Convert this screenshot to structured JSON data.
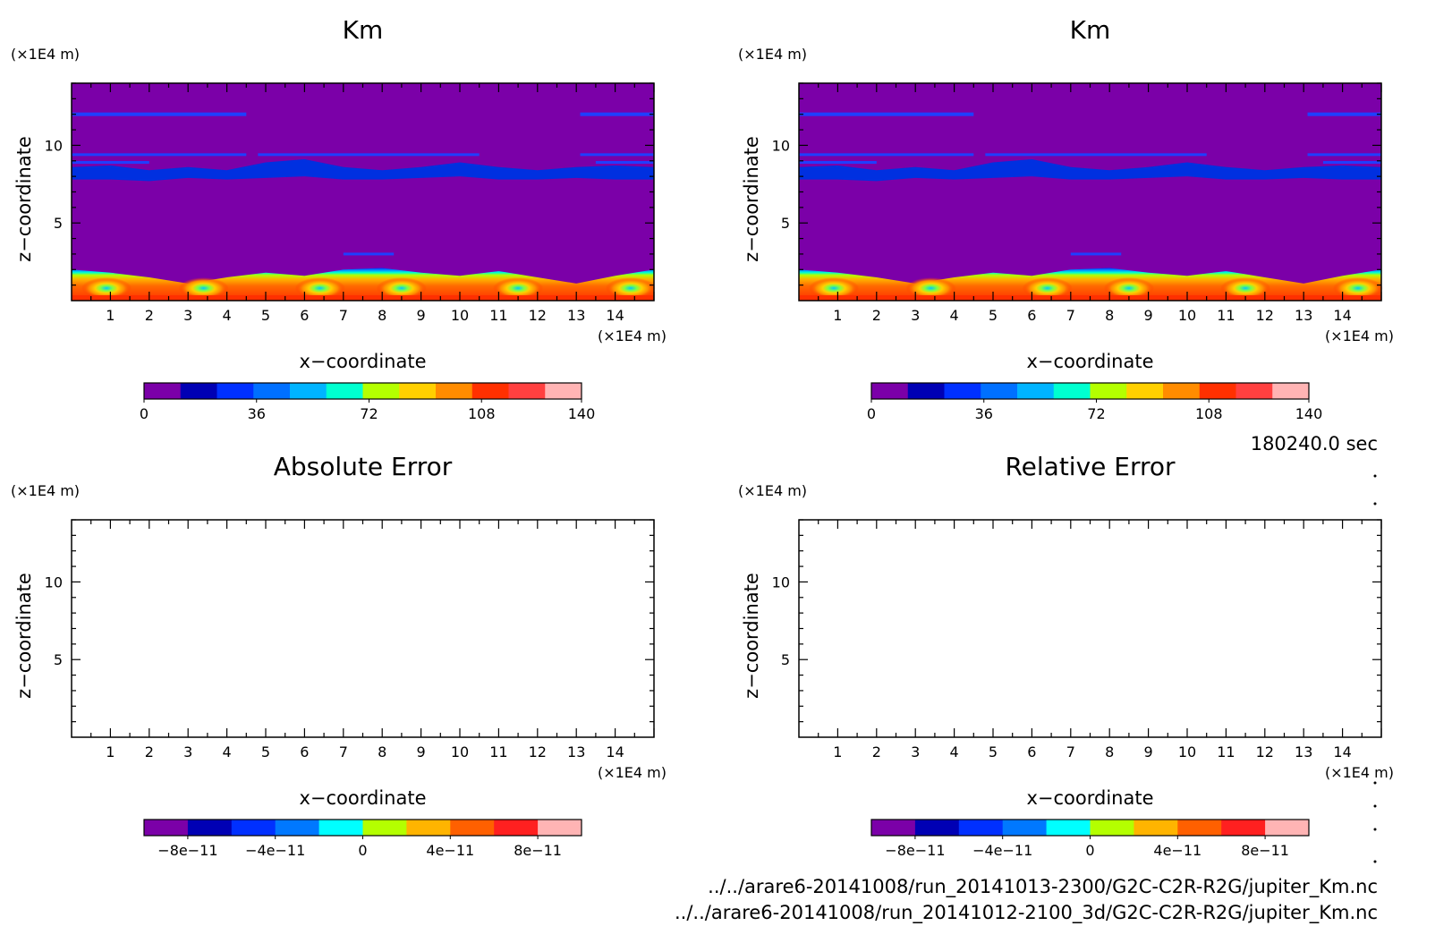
{
  "time_label": "180240.0 sec",
  "file_paths": [
    "../../arare6-20141008/run_20141013-2300/G2C-C2R-R2G/jupiter_Km.nc",
    "../../arare6-20141008/run_20141012-2100_3d/G2C-C2R-R2G/jupiter_Km.nc"
  ],
  "colors": {
    "km_colorbar": [
      "#7b00a8",
      "#0000b4",
      "#0030ff",
      "#0070ff",
      "#00b4ff",
      "#00ffd0",
      "#b4ff00",
      "#ffd000",
      "#ff8c00",
      "#ff3000",
      "#ff4040",
      "#ffb4b4"
    ],
    "err_colorbar": [
      "#7b00a8",
      "#0000b4",
      "#0030ff",
      "#0078ff",
      "#00ffff",
      "#b4ff00",
      "#ffb400",
      "#ff6000",
      "#ff2020",
      "#ffb4b4"
    ],
    "background_field": "#7b00a8",
    "contour_blue": "#1f3fff"
  },
  "chart_data": [
    {
      "id": "km-left",
      "type": "heatmap",
      "title": "Km",
      "xlabel": "x−coordinate",
      "ylabel": "z−coordinate",
      "x_unit": "(×1E4 m)",
      "y_unit": "(×1E4 m)",
      "xlim": [
        0,
        15
      ],
      "ylim": [
        0,
        14
      ],
      "x_ticks": [
        "1",
        "2",
        "3",
        "4",
        "5",
        "6",
        "7",
        "8",
        "9",
        "10",
        "11",
        "12",
        "13",
        "14"
      ],
      "y_ticks": [
        "5",
        "10"
      ],
      "filled": true,
      "colorbar": {
        "ticks": [
          "0",
          "36",
          "72",
          "108",
          "140"
        ],
        "range": [
          0,
          140
        ]
      },
      "features": {
        "upper_bands_z": [
          12.0,
          9.4,
          8.9,
          8.2,
          3.0
        ],
        "boundary_layer_top_z": 1.8
      }
    },
    {
      "id": "km-right",
      "type": "heatmap",
      "title": "Km",
      "xlabel": "x−coordinate",
      "ylabel": "z−coordinate",
      "x_unit": "(×1E4 m)",
      "y_unit": "(×1E4 m)",
      "xlim": [
        0,
        15
      ],
      "ylim": [
        0,
        14
      ],
      "x_ticks": [
        "1",
        "2",
        "3",
        "4",
        "5",
        "6",
        "7",
        "8",
        "9",
        "10",
        "11",
        "12",
        "13",
        "14"
      ],
      "y_ticks": [
        "5",
        "10"
      ],
      "filled": true,
      "colorbar": {
        "ticks": [
          "0",
          "36",
          "72",
          "108",
          "140"
        ],
        "range": [
          0,
          140
        ]
      },
      "features": {
        "upper_bands_z": [
          12.0,
          9.4,
          8.9,
          8.2,
          3.0
        ],
        "boundary_layer_top_z": 1.8
      }
    },
    {
      "id": "abs-error",
      "type": "heatmap",
      "title": "Absolute Error",
      "xlabel": "x−coordinate",
      "ylabel": "z−coordinate",
      "x_unit": "(×1E4 m)",
      "y_unit": "(×1E4 m)",
      "xlim": [
        0,
        15
      ],
      "ylim": [
        0,
        14
      ],
      "x_ticks": [
        "1",
        "2",
        "3",
        "4",
        "5",
        "6",
        "7",
        "8",
        "9",
        "10",
        "11",
        "12",
        "13",
        "14"
      ],
      "y_ticks": [
        "5",
        "10"
      ],
      "filled": false,
      "colorbar": {
        "ticks": [
          "−8e−11",
          "−4e−11",
          "0",
          "4e−11",
          "8e−11"
        ],
        "range": [
          -1e-10,
          1e-10
        ]
      }
    },
    {
      "id": "rel-error",
      "type": "heatmap",
      "title": "Relative Error",
      "xlabel": "x−coordinate",
      "ylabel": "z−coordinate",
      "x_unit": "(×1E4 m)",
      "y_unit": "(×1E4 m)",
      "xlim": [
        0,
        15
      ],
      "ylim": [
        0,
        14
      ],
      "x_ticks": [
        "1",
        "2",
        "3",
        "4",
        "5",
        "6",
        "7",
        "8",
        "9",
        "10",
        "11",
        "12",
        "13",
        "14"
      ],
      "y_ticks": [
        "5",
        "10"
      ],
      "filled": false,
      "colorbar": {
        "ticks": [
          "−8e−11",
          "−4e−11",
          "0",
          "4e−11",
          "8e−11"
        ],
        "range": [
          -1e-10,
          1e-10
        ]
      }
    }
  ]
}
